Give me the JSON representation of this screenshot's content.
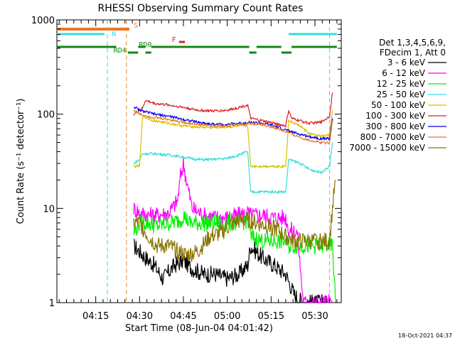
{
  "chart_data": {
    "type": "line",
    "title": "RHESSI Observing Summary Count Rates",
    "xlabel": "Start Time (08-Jun-04 04:01:42)",
    "ylabel": "Count Rate (s⁻¹ detector⁻¹)",
    "y_scale": "log",
    "ylim": [
      1,
      1000
    ],
    "xlim": [
      "04:01:42",
      "05:39:00"
    ],
    "grid": false,
    "legend_position": "right",
    "x_ticks": [
      "04:15",
      "04:30",
      "04:45",
      "05:00",
      "05:15",
      "05:30"
    ],
    "y_ticks": [
      "1",
      "10",
      "100",
      "1000"
    ],
    "legend_header": [
      "Det 1,3,4,5,6,9,",
      "FDecim 1, Att 0"
    ],
    "timestamp": "18-Oct-2021 04:37",
    "state_bars": [
      {
        "label": "S",
        "color": "#ee7722",
        "segments": [
          [
            "04:01:42",
            "04:26:30"
          ]
        ]
      },
      {
        "label": "N",
        "color": "#33dddd",
        "segments": [
          [
            "04:01:42",
            "04:18:00"
          ],
          [
            "05:21:00",
            "05:37:30"
          ]
        ]
      },
      {
        "label": "F",
        "color": "#dd2222",
        "segments": [
          [
            "04:43:30",
            "04:45:30"
          ]
        ]
      },
      {
        "label": "RD0",
        "color": "#118811",
        "segments": [
          [
            "04:01:42",
            "04:22:00"
          ],
          [
            "04:29:30",
            "04:32:00"
          ],
          [
            "04:34:00",
            "05:07:30"
          ],
          [
            "05:10:00",
            "05:18:30"
          ],
          [
            "05:22:00",
            "05:37:30"
          ]
        ]
      },
      {
        "label": "RD4",
        "color": "#118811",
        "segments": [
          [
            "04:26:00",
            "04:29:30"
          ],
          [
            "04:32:00",
            "04:34:00"
          ],
          [
            "05:07:30",
            "05:10:00"
          ],
          [
            "05:18:30",
            "05:22:00"
          ]
        ]
      }
    ],
    "vertical_lines": [
      {
        "time": "04:19:00",
        "color": "#33dddd",
        "style": "dashed"
      },
      {
        "time": "04:25:30",
        "color": "#ee8822",
        "style": "dashed"
      },
      {
        "time": "05:35:00",
        "color": "#33dddd",
        "style": "dashed"
      }
    ],
    "series": [
      {
        "name": "3 - 6 keV",
        "color": "#000000",
        "x": [
          "04:28",
          "04:30",
          "04:32",
          "04:35",
          "04:38",
          "04:42",
          "04:45",
          "04:48",
          "04:52",
          "04:56",
          "05:00",
          "05:04",
          "05:07",
          "05:08",
          "05:12",
          "05:16",
          "05:20",
          "05:23",
          "05:26",
          "05:29",
          "05:32",
          "05:34"
        ],
        "y": [
          4,
          3.5,
          3,
          2.5,
          1.8,
          2.5,
          2.8,
          2.3,
          2,
          2,
          1.8,
          2,
          2.5,
          4,
          3,
          2.5,
          2,
          1.2,
          1,
          1,
          1,
          1
        ]
      },
      {
        "name": "6 - 12 keV",
        "color": "#ff00ff",
        "x": [
          "04:28",
          "04:30",
          "04:33",
          "04:36",
          "04:40",
          "04:43",
          "04:44",
          "04:45",
          "04:46",
          "04:48",
          "04:52",
          "04:56",
          "05:00",
          "05:04",
          "05:07",
          "05:08",
          "05:12",
          "05:16",
          "05:20",
          "05:21",
          "05:24",
          "05:26",
          "05:28",
          "05:32",
          "05:34",
          "05:36"
        ],
        "y": [
          10,
          9,
          8.5,
          8.5,
          9,
          12,
          22,
          30,
          20,
          10,
          8.5,
          8,
          8,
          8.5,
          9,
          8.5,
          8.5,
          8,
          8,
          6,
          5.5,
          1,
          1,
          1,
          1,
          1
        ]
      },
      {
        "name": "12 - 25 keV",
        "color": "#00ee00",
        "x": [
          "04:28",
          "04:30",
          "04:33",
          "04:36",
          "04:40",
          "04:44",
          "04:45",
          "04:47",
          "04:50",
          "04:55",
          "05:00",
          "05:04",
          "05:07",
          "05:08",
          "05:12",
          "05:16",
          "05:20",
          "05:21",
          "05:25",
          "05:28",
          "05:32",
          "05:34",
          "05:36",
          "05:37"
        ],
        "y": [
          5.5,
          7,
          7,
          6.5,
          7,
          7.5,
          8.5,
          7,
          7,
          7,
          7,
          7,
          7.5,
          5,
          4.5,
          4.5,
          4.5,
          4,
          4,
          4,
          4,
          4,
          4,
          1
        ]
      },
      {
        "name": "25 - 50 keV",
        "color": "#33dddd",
        "x": [
          "04:28",
          "04:30",
          "04:31",
          "04:35",
          "04:40",
          "04:45",
          "04:50",
          "04:55",
          "05:00",
          "05:04",
          "05:07",
          "05:08",
          "05:12",
          "05:16",
          "05:20",
          "05:21",
          "05:25",
          "05:28",
          "05:32",
          "05:35",
          "05:36"
        ],
        "y": [
          30,
          33,
          38,
          38,
          37,
          35,
          33,
          33,
          34,
          37,
          40,
          15,
          15,
          15,
          15,
          33,
          30,
          26,
          24,
          28,
          50
        ]
      },
      {
        "name": "50 - 100 keV",
        "color": "#d8c000",
        "x": [
          "04:28",
          "04:30",
          "04:31",
          "04:35",
          "04:40",
          "04:45",
          "04:50",
          "04:55",
          "05:00",
          "05:04",
          "05:07",
          "05:08",
          "05:12",
          "05:16",
          "05:20",
          "05:21",
          "05:25",
          "05:28",
          "05:32",
          "05:35",
          "05:36"
        ],
        "y": [
          28,
          28,
          95,
          85,
          80,
          75,
          73,
          72,
          73,
          75,
          75,
          28,
          28,
          28,
          28,
          85,
          75,
          62,
          58,
          60,
          110
        ]
      },
      {
        "name": "100 - 300 keV",
        "color": "#dd2222",
        "x": [
          "04:28",
          "04:31",
          "04:32",
          "04:35",
          "04:40",
          "04:45",
          "04:50",
          "04:55",
          "05:00",
          "05:04",
          "05:07",
          "05:08",
          "05:12",
          "05:16",
          "05:20",
          "05:21",
          "05:22",
          "05:25",
          "05:28",
          "05:32",
          "05:35",
          "05:36"
        ],
        "y": [
          100,
          115,
          140,
          130,
          125,
          118,
          110,
          108,
          110,
          118,
          125,
          90,
          85,
          80,
          75,
          110,
          90,
          85,
          80,
          82,
          95,
          170
        ]
      },
      {
        "name": "300 - 800 keV",
        "color": "#0000ee",
        "x": [
          "04:28",
          "04:30",
          "04:35",
          "04:40",
          "04:45",
          "04:50",
          "04:55",
          "05:00",
          "05:04",
          "05:08",
          "05:12",
          "05:16",
          "05:20",
          "05:24",
          "05:28",
          "05:32",
          "05:35",
          "05:36"
        ],
        "y": [
          120,
          110,
          100,
          95,
          88,
          82,
          78,
          78,
          80,
          82,
          80,
          75,
          68,
          62,
          58,
          55,
          55,
          90
        ]
      },
      {
        "name": "800 - 7000 keV",
        "color": "#ee7722",
        "x": [
          "04:28",
          "04:30",
          "04:35",
          "04:40",
          "04:45",
          "04:50",
          "04:55",
          "05:00",
          "05:04",
          "05:08",
          "05:12",
          "05:16",
          "05:20",
          "05:24",
          "05:28",
          "05:32",
          "05:35",
          "05:36"
        ],
        "y": [
          110,
          100,
          92,
          88,
          82,
          78,
          75,
          75,
          77,
          80,
          77,
          72,
          65,
          58,
          53,
          50,
          50,
          85
        ]
      },
      {
        "name": "7000 - 15000 keV",
        "color": "#8b7300",
        "x": [
          "04:28",
          "04:30",
          "04:33",
          "04:36",
          "04:40",
          "04:43",
          "04:46",
          "04:50",
          "04:54",
          "04:58",
          "05:02",
          "05:05",
          "05:07",
          "05:10",
          "05:14",
          "05:17",
          "05:20",
          "05:23",
          "05:26",
          "05:30",
          "05:33",
          "05:35",
          "05:36",
          "05:37"
        ],
        "y": [
          7,
          7,
          5,
          4,
          4,
          3.5,
          3.2,
          3.5,
          5,
          5.5,
          7,
          7.5,
          7.5,
          7,
          6.5,
          6,
          5,
          4.5,
          4.5,
          4.5,
          4.5,
          4.5,
          10,
          20
        ]
      }
    ]
  }
}
